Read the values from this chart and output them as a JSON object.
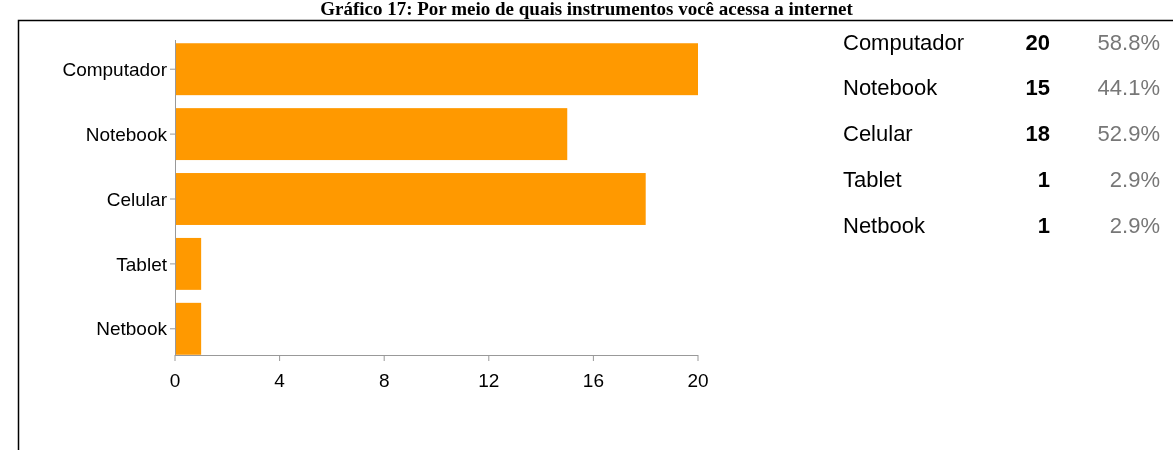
{
  "chart_data": [
    {
      "type": "bar",
      "orientation": "horizontal",
      "title": "Gráfico 17: Por meio de quais instrumentos você acessa a internet",
      "categories": [
        "Computador",
        "Notebook",
        "Celular",
        "Tablet",
        "Netbook"
      ],
      "values": [
        20,
        15,
        18,
        1,
        1
      ],
      "color": "#ff9900",
      "xlim": [
        0,
        20
      ],
      "xticks": [
        0,
        4,
        8,
        12,
        16,
        20
      ],
      "grid": false
    },
    {
      "type": "other",
      "categories": [
        "Computador",
        "Notebook",
        "Celular",
        "Tablet",
        "Netbook"
      ],
      "values": [
        20,
        15,
        18,
        1,
        1
      ],
      "data_labels": true,
      "annotations": [
        "58.8%",
        "44.1%",
        "52.9%",
        "2.9%",
        "2.9%"
      ]
    }
  ]
}
